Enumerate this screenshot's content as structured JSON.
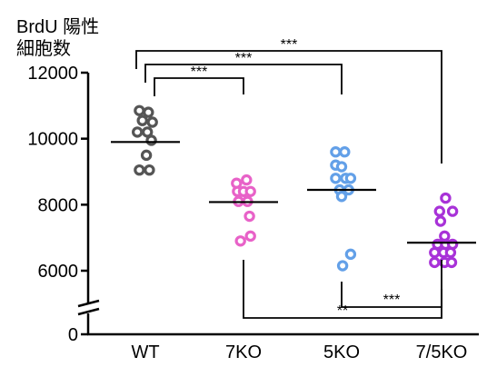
{
  "chart_data": {
    "type": "scatter",
    "ylabel_lines": [
      "BrdU 陽性",
      "細胞数"
    ],
    "yticks": [
      0,
      6000,
      8000,
      10000,
      12000
    ],
    "ytick_labels": [
      "0",
      "6000",
      "8000",
      "10000",
      "12000"
    ],
    "ylim": [
      0,
      12000
    ],
    "axis_break": true,
    "categories": [
      "WT",
      "7KO",
      "5KO",
      "7/5KO"
    ],
    "groups": [
      {
        "category": "WT",
        "color": "#555555",
        "mean": 9900,
        "points": [
          [
            -0.3,
            10850
          ],
          [
            0.15,
            10800
          ],
          [
            -0.15,
            10550
          ],
          [
            0.35,
            10500
          ],
          [
            -0.4,
            10200
          ],
          [
            0.1,
            10200
          ],
          [
            0.3,
            9950
          ],
          [
            0.05,
            9500
          ],
          [
            -0.3,
            9050
          ],
          [
            0.2,
            9050
          ]
        ]
      },
      {
        "category": "7KO",
        "color": "#e862c8",
        "mean": 8080,
        "points": [
          [
            -0.35,
            8650
          ],
          [
            0.15,
            8750
          ],
          [
            -0.3,
            8400
          ],
          [
            0.0,
            8400
          ],
          [
            0.35,
            8400
          ],
          [
            -0.25,
            8100
          ],
          [
            0.2,
            8100
          ],
          [
            0.3,
            7650
          ],
          [
            -0.15,
            6900
          ],
          [
            0.35,
            7050
          ]
        ]
      },
      {
        "category": "5KO",
        "color": "#63a0e8",
        "mean": 8450,
        "points": [
          [
            -0.3,
            9600
          ],
          [
            0.15,
            9600
          ],
          [
            -0.3,
            9200
          ],
          [
            0.0,
            9150
          ],
          [
            -0.3,
            8800
          ],
          [
            0.2,
            8800
          ],
          [
            0.45,
            8800
          ],
          [
            -0.1,
            8450
          ],
          [
            0.35,
            8450
          ],
          [
            0.0,
            8250
          ],
          [
            0.45,
            6500
          ],
          [
            0.05,
            6150
          ]
        ]
      },
      {
        "category": "7/5KO",
        "color": "#a832d8",
        "mean": 6850,
        "points": [
          [
            0.2,
            8200
          ],
          [
            -0.1,
            7800
          ],
          [
            0.55,
            7800
          ],
          [
            -0.05,
            7500
          ],
          [
            0.15,
            7050
          ],
          [
            -0.2,
            6800
          ],
          [
            0.2,
            6800
          ],
          [
            0.55,
            6800
          ],
          [
            -0.35,
            6550
          ],
          [
            0.1,
            6550
          ],
          [
            0.45,
            6550
          ],
          [
            -0.35,
            6250
          ],
          [
            0.15,
            6250
          ],
          [
            0.5,
            6250
          ]
        ]
      }
    ],
    "significance": [
      {
        "from": "WT",
        "to": "7KO",
        "label": "***",
        "position": "top"
      },
      {
        "from": "WT",
        "to": "5KO",
        "label": "***",
        "position": "top"
      },
      {
        "from": "WT",
        "to": "7/5KO",
        "label": "***",
        "position": "top"
      },
      {
        "from": "5KO",
        "to": "7/5KO",
        "label": "***",
        "position": "bottom"
      },
      {
        "from": "7KO",
        "to": "7/5KO",
        "label": "**",
        "position": "bottom"
      }
    ]
  }
}
